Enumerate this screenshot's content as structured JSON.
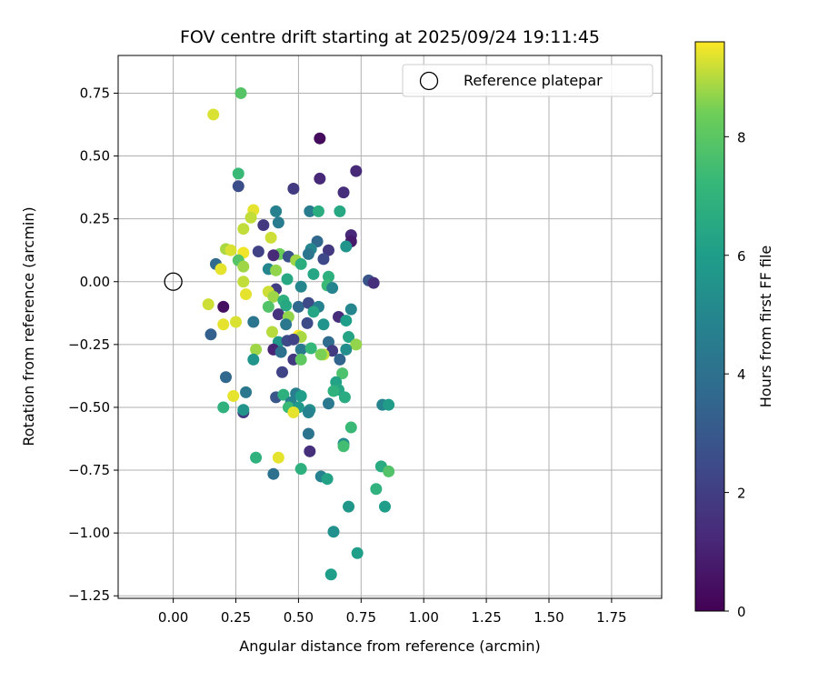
{
  "chart_data": {
    "type": "scatter",
    "title": "FOV centre drift starting at 2025/09/24 19:11:45",
    "xlabel": "Angular distance from reference (arcmin)",
    "ylabel": "Rotation from reference (arcmin)",
    "xlim": [
      -0.22,
      1.95
    ],
    "ylim": [
      -1.26,
      0.9
    ],
    "xticks": [
      0.0,
      0.25,
      0.5,
      0.75,
      1.0,
      1.25,
      1.5,
      1.75
    ],
    "xtick_labels": [
      "0.00",
      "0.25",
      "0.50",
      "0.75",
      "1.00",
      "1.25",
      "1.50",
      "1.75"
    ],
    "yticks": [
      -1.25,
      -1.0,
      -0.75,
      -0.5,
      -0.25,
      0.0,
      0.25,
      0.5,
      0.75
    ],
    "ytick_labels": [
      "−1.25",
      "−1.00",
      "−0.75",
      "−0.50",
      "−0.25",
      "0.00",
      "0.25",
      "0.50",
      "0.75"
    ],
    "grid": true,
    "legend": {
      "position": "top-right",
      "entries": [
        "Reference platepar"
      ]
    },
    "reference_point": {
      "x": 0.0,
      "y": 0.0
    },
    "colorbar": {
      "label": "Hours from first FF file",
      "colormap": "viridis",
      "range": [
        0,
        9.6
      ],
      "ticks": [
        0,
        2,
        4,
        6,
        8
      ],
      "tick_labels": [
        "0",
        "2",
        "4",
        "6",
        "8"
      ]
    },
    "points": [
      {
        "x": 0.27,
        "y": 0.75,
        "c": 7.9
      },
      {
        "x": 0.16,
        "y": 0.665,
        "c": 9.3
      },
      {
        "x": 0.585,
        "y": 0.57,
        "c": 0.3
      },
      {
        "x": 0.73,
        "y": 0.44,
        "c": 1.3
      },
      {
        "x": 0.585,
        "y": 0.41,
        "c": 1.2
      },
      {
        "x": 0.26,
        "y": 0.43,
        "c": 7.3
      },
      {
        "x": 0.26,
        "y": 0.38,
        "c": 2.6
      },
      {
        "x": 0.48,
        "y": 0.37,
        "c": 1.9
      },
      {
        "x": 0.68,
        "y": 0.355,
        "c": 1.4
      },
      {
        "x": 0.32,
        "y": 0.285,
        "c": 9.4
      },
      {
        "x": 0.41,
        "y": 0.28,
        "c": 4.7
      },
      {
        "x": 0.545,
        "y": 0.28,
        "c": 4.5
      },
      {
        "x": 0.58,
        "y": 0.28,
        "c": 6.7
      },
      {
        "x": 0.665,
        "y": 0.28,
        "c": 6.5
      },
      {
        "x": 0.31,
        "y": 0.255,
        "c": 9.1
      },
      {
        "x": 0.36,
        "y": 0.225,
        "c": 1.8
      },
      {
        "x": 0.42,
        "y": 0.235,
        "c": 4.5
      },
      {
        "x": 0.28,
        "y": 0.21,
        "c": 9.1
      },
      {
        "x": 0.39,
        "y": 0.175,
        "c": 9.2
      },
      {
        "x": 0.71,
        "y": 0.185,
        "c": 1.2
      },
      {
        "x": 0.575,
        "y": 0.16,
        "c": 3.6
      },
      {
        "x": 0.71,
        "y": 0.16,
        "c": 0.8
      },
      {
        "x": 0.69,
        "y": 0.14,
        "c": 5.6
      },
      {
        "x": 0.55,
        "y": 0.13,
        "c": 5.0
      },
      {
        "x": 0.62,
        "y": 0.125,
        "c": 1.8
      },
      {
        "x": 0.21,
        "y": 0.13,
        "c": 8.9
      },
      {
        "x": 0.23,
        "y": 0.125,
        "c": 9.3
      },
      {
        "x": 0.34,
        "y": 0.12,
        "c": 2.1
      },
      {
        "x": 0.28,
        "y": 0.115,
        "c": 9.5
      },
      {
        "x": 0.425,
        "y": 0.11,
        "c": 8.3
      },
      {
        "x": 0.4,
        "y": 0.105,
        "c": 1.3
      },
      {
        "x": 0.46,
        "y": 0.1,
        "c": 2.7
      },
      {
        "x": 0.54,
        "y": 0.11,
        "c": 4.2
      },
      {
        "x": 0.6,
        "y": 0.09,
        "c": 2.4
      },
      {
        "x": 0.17,
        "y": 0.07,
        "c": 3.7
      },
      {
        "x": 0.26,
        "y": 0.085,
        "c": 7.9
      },
      {
        "x": 0.28,
        "y": 0.06,
        "c": 8.8
      },
      {
        "x": 0.49,
        "y": 0.085,
        "c": 8.8
      },
      {
        "x": 0.51,
        "y": 0.07,
        "c": 6.7
      },
      {
        "x": 0.19,
        "y": 0.05,
        "c": 9.4
      },
      {
        "x": 0.38,
        "y": 0.05,
        "c": 5.0
      },
      {
        "x": 0.41,
        "y": 0.045,
        "c": 8.7
      },
      {
        "x": 0.56,
        "y": 0.03,
        "c": 6.4
      },
      {
        "x": 0.62,
        "y": 0.02,
        "c": 6.8
      },
      {
        "x": 0.455,
        "y": 0.01,
        "c": 6.5
      },
      {
        "x": 0.78,
        "y": 0.005,
        "c": 2.9
      },
      {
        "x": 0.8,
        "y": -0.005,
        "c": 1.5
      },
      {
        "x": 0.28,
        "y": 0.0,
        "c": 9.1
      },
      {
        "x": 0.51,
        "y": -0.02,
        "c": 5.0
      },
      {
        "x": 0.615,
        "y": -0.015,
        "c": 7.3
      },
      {
        "x": 0.635,
        "y": -0.025,
        "c": 4.9
      },
      {
        "x": 0.41,
        "y": -0.03,
        "c": 2.0
      },
      {
        "x": 0.38,
        "y": -0.04,
        "c": 9.2
      },
      {
        "x": 0.4,
        "y": -0.06,
        "c": 8.8
      },
      {
        "x": 0.29,
        "y": -0.05,
        "c": 9.4
      },
      {
        "x": 0.14,
        "y": -0.09,
        "c": 9.2
      },
      {
        "x": 0.2,
        "y": -0.1,
        "c": 0.4
      },
      {
        "x": 0.44,
        "y": -0.075,
        "c": 6.8
      },
      {
        "x": 0.45,
        "y": -0.095,
        "c": 6.5
      },
      {
        "x": 0.5,
        "y": -0.1,
        "c": 3.6
      },
      {
        "x": 0.54,
        "y": -0.085,
        "c": 2.5
      },
      {
        "x": 0.58,
        "y": -0.1,
        "c": 4.8
      },
      {
        "x": 0.56,
        "y": -0.12,
        "c": 6.4
      },
      {
        "x": 0.71,
        "y": -0.11,
        "c": 5.0
      },
      {
        "x": 0.38,
        "y": -0.1,
        "c": 7.8
      },
      {
        "x": 0.42,
        "y": -0.13,
        "c": 1.6
      },
      {
        "x": 0.46,
        "y": -0.14,
        "c": 8.7
      },
      {
        "x": 0.66,
        "y": -0.14,
        "c": 1.4
      },
      {
        "x": 0.69,
        "y": -0.155,
        "c": 6.0
      },
      {
        "x": 0.2,
        "y": -0.17,
        "c": 9.4
      },
      {
        "x": 0.25,
        "y": -0.16,
        "c": 9.3
      },
      {
        "x": 0.32,
        "y": -0.16,
        "c": 4.2
      },
      {
        "x": 0.45,
        "y": -0.17,
        "c": 4.3
      },
      {
        "x": 0.535,
        "y": -0.165,
        "c": 2.5
      },
      {
        "x": 0.6,
        "y": -0.17,
        "c": 5.6
      },
      {
        "x": 0.395,
        "y": -0.2,
        "c": 9.0
      },
      {
        "x": 0.15,
        "y": -0.21,
        "c": 3.3
      },
      {
        "x": 0.5,
        "y": -0.215,
        "c": 9.6
      },
      {
        "x": 0.51,
        "y": -0.22,
        "c": 8.9
      },
      {
        "x": 0.7,
        "y": -0.22,
        "c": 6.3
      },
      {
        "x": 0.42,
        "y": -0.24,
        "c": 5.7
      },
      {
        "x": 0.455,
        "y": -0.235,
        "c": 2.5
      },
      {
        "x": 0.48,
        "y": -0.23,
        "c": 2.2
      },
      {
        "x": 0.62,
        "y": -0.24,
        "c": 3.8
      },
      {
        "x": 0.73,
        "y": -0.25,
        "c": 8.7
      },
      {
        "x": 0.4,
        "y": -0.27,
        "c": 1.1
      },
      {
        "x": 0.33,
        "y": -0.27,
        "c": 8.8
      },
      {
        "x": 0.43,
        "y": -0.28,
        "c": 4.0
      },
      {
        "x": 0.51,
        "y": -0.27,
        "c": 4.4
      },
      {
        "x": 0.55,
        "y": -0.265,
        "c": 7.2
      },
      {
        "x": 0.635,
        "y": -0.275,
        "c": 1.9
      },
      {
        "x": 0.69,
        "y": -0.27,
        "c": 5.3
      },
      {
        "x": 0.6,
        "y": -0.29,
        "c": 9.1
      },
      {
        "x": 0.59,
        "y": -0.29,
        "c": 8.5
      },
      {
        "x": 0.48,
        "y": -0.31,
        "c": 1.8
      },
      {
        "x": 0.51,
        "y": -0.31,
        "c": 8.1
      },
      {
        "x": 0.665,
        "y": -0.31,
        "c": 3.5
      },
      {
        "x": 0.32,
        "y": -0.31,
        "c": 5.6
      },
      {
        "x": 0.435,
        "y": -0.36,
        "c": 2.2
      },
      {
        "x": 0.675,
        "y": -0.365,
        "c": 7.7
      },
      {
        "x": 0.21,
        "y": -0.38,
        "c": 3.6
      },
      {
        "x": 0.65,
        "y": -0.4,
        "c": 6.2
      },
      {
        "x": 0.66,
        "y": -0.43,
        "c": 6.4
      },
      {
        "x": 0.64,
        "y": -0.435,
        "c": 6.9
      },
      {
        "x": 0.29,
        "y": -0.44,
        "c": 4.3
      },
      {
        "x": 0.24,
        "y": -0.455,
        "c": 9.4
      },
      {
        "x": 0.41,
        "y": -0.46,
        "c": 2.9
      },
      {
        "x": 0.44,
        "y": -0.45,
        "c": 6.8
      },
      {
        "x": 0.49,
        "y": -0.445,
        "c": 4.6
      },
      {
        "x": 0.51,
        "y": -0.455,
        "c": 6.0
      },
      {
        "x": 0.47,
        "y": -0.48,
        "c": 4.8
      },
      {
        "x": 0.685,
        "y": -0.46,
        "c": 6.6
      },
      {
        "x": 0.835,
        "y": -0.49,
        "c": 4.9
      },
      {
        "x": 0.86,
        "y": -0.49,
        "c": 5.9
      },
      {
        "x": 0.62,
        "y": -0.485,
        "c": 4.4
      },
      {
        "x": 0.2,
        "y": -0.5,
        "c": 6.9
      },
      {
        "x": 0.46,
        "y": -0.5,
        "c": 7.3
      },
      {
        "x": 0.5,
        "y": -0.5,
        "c": 5.8
      },
      {
        "x": 0.545,
        "y": -0.51,
        "c": 5.4
      },
      {
        "x": 0.28,
        "y": -0.52,
        "c": 1.9
      },
      {
        "x": 0.48,
        "y": -0.52,
        "c": 9.4
      },
      {
        "x": 0.54,
        "y": -0.52,
        "c": 4.8
      },
      {
        "x": 0.28,
        "y": -0.51,
        "c": 5.6
      },
      {
        "x": 0.71,
        "y": -0.58,
        "c": 7.3
      },
      {
        "x": 0.54,
        "y": -0.605,
        "c": 4.1
      },
      {
        "x": 0.68,
        "y": -0.645,
        "c": 5.2
      },
      {
        "x": 0.68,
        "y": -0.655,
        "c": 7.5
      },
      {
        "x": 0.545,
        "y": -0.675,
        "c": 1.5
      },
      {
        "x": 0.33,
        "y": -0.7,
        "c": 6.9
      },
      {
        "x": 0.42,
        "y": -0.7,
        "c": 9.4
      },
      {
        "x": 0.51,
        "y": -0.745,
        "c": 6.8
      },
      {
        "x": 0.83,
        "y": -0.735,
        "c": 6.6
      },
      {
        "x": 0.86,
        "y": -0.755,
        "c": 7.8
      },
      {
        "x": 0.4,
        "y": -0.765,
        "c": 4.0
      },
      {
        "x": 0.59,
        "y": -0.775,
        "c": 4.8
      },
      {
        "x": 0.615,
        "y": -0.785,
        "c": 6.2
      },
      {
        "x": 0.81,
        "y": -0.825,
        "c": 6.9
      },
      {
        "x": 0.845,
        "y": -0.895,
        "c": 6.0
      },
      {
        "x": 0.7,
        "y": -0.895,
        "c": 5.7
      },
      {
        "x": 0.64,
        "y": -0.995,
        "c": 5.4
      },
      {
        "x": 0.735,
        "y": -1.08,
        "c": 6.0
      },
      {
        "x": 0.63,
        "y": -1.165,
        "c": 6.0
      }
    ]
  }
}
